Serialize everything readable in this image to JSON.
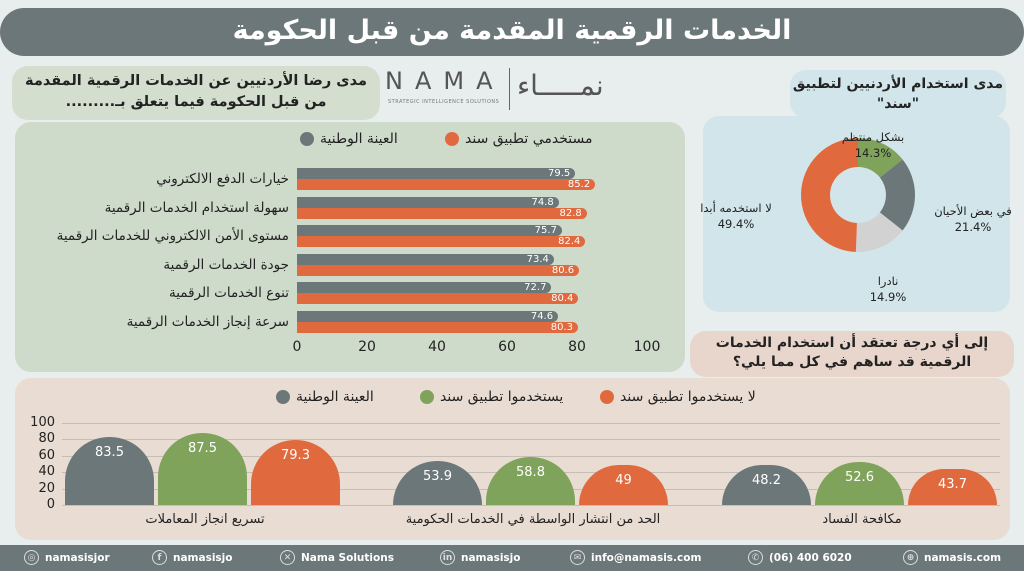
{
  "title": "الخدمات الرقمية المقدمة من قبل الحكومة",
  "logo": {
    "en": "NAMA",
    "tagline": "STRATEGIC INTELLIGENCE SOLUTIONS",
    "ar": "نمـــــاء"
  },
  "colors": {
    "gray": "#6b7778",
    "orange": "#e06a3d",
    "green": "#7fa35b",
    "light_gray": "#d2d2d2"
  },
  "chart_data": [
    {
      "type": "bar",
      "orientation": "horizontal",
      "title": "مدى رضا الأردنيين عن الخدمات الرقمية المقدمة من قبل الحكومة فيما يتعلق بـ.........",
      "categories": [
        "خيارات الدفع الالكتروني",
        "سهولة استخدام الخدمات الرقمية",
        "مستوى الأمن الالكتروني للخدمات الرقمية",
        "جودة الخدمات الرقمية",
        "تنوع الخدمات الرقمية",
        "سرعة إنجاز الخدمات الرقمية"
      ],
      "series": [
        {
          "name": "العينة الوطنية",
          "color": "#6b7778",
          "values": [
            79.5,
            74.8,
            75.7,
            73.4,
            72.7,
            74.6
          ]
        },
        {
          "name": "مستخدمي تطبيق سند",
          "color": "#e06a3d",
          "values": [
            85.2,
            82.8,
            82.4,
            80.6,
            80.4,
            80.3
          ]
        }
      ],
      "xlim": [
        0,
        100
      ],
      "xticks": [
        "0",
        "20",
        "40",
        "60",
        "80",
        "100"
      ],
      "legend": "top"
    },
    {
      "type": "pie",
      "donut": true,
      "title": "مدى استخدام الأردنيين لتطبيق \"سند\"",
      "slices": [
        {
          "label": "بشكل منتظم",
          "value": 14.3,
          "display": "14.3%",
          "color": "#7fa35b"
        },
        {
          "label": "في بعض الأحيان",
          "value": 21.4,
          "display": "21.4%",
          "color": "#6b7778"
        },
        {
          "label": "نادرا",
          "value": 14.9,
          "display": "14.9%",
          "color": "#d2d2d2"
        },
        {
          "label": "لا استخدمه أبدا",
          "value": 49.4,
          "display": "49.4%",
          "color": "#e06a3d"
        }
      ]
    },
    {
      "type": "bar",
      "orientation": "vertical",
      "title": "إلى أي درجة تعتقد أن استخدام الخدمات الرقمية قد ساهم في كل مما يلي؟",
      "categories": [
        "تسريع انجاز المعاملات",
        "الحد من انتشار الواسطة في الخدمات الحكومية",
        "مكافحة الفساد"
      ],
      "series": [
        {
          "name": "العينة الوطنية",
          "color": "#6b7778",
          "values": [
            83.5,
            53.9,
            48.2
          ],
          "labels": [
            "83.5",
            "53.9",
            "48.2"
          ]
        },
        {
          "name": "يستخدموا تطبيق سند",
          "color": "#7fa35b",
          "values": [
            87.5,
            58.8,
            52.6
          ],
          "labels": [
            "87.5",
            "58.8",
            "52.6"
          ]
        },
        {
          "name": "لا يستخدموا تطبيق سند",
          "color": "#e06a3d",
          "values": [
            79.3,
            49,
            43.7
          ],
          "labels": [
            "79.3",
            "49",
            "43.7"
          ]
        }
      ],
      "ylim": [
        0,
        100
      ],
      "yticks": [
        "0",
        "20",
        "40",
        "60",
        "80",
        "100"
      ],
      "grid": true,
      "legend": "top"
    }
  ],
  "footer": [
    {
      "icon": "instagram-icon",
      "text": "namasisjor"
    },
    {
      "icon": "facebook-icon",
      "text": "namasisjo"
    },
    {
      "icon": "x-icon",
      "text": "Nama Solutions"
    },
    {
      "icon": "linkedin-icon",
      "text": "namasisjo"
    },
    {
      "icon": "mail-icon",
      "text": "info@namasis.com"
    },
    {
      "icon": "phone-icon",
      "text": "(06) 400 6020"
    },
    {
      "icon": "globe-icon",
      "text": "namasis.com"
    }
  ]
}
